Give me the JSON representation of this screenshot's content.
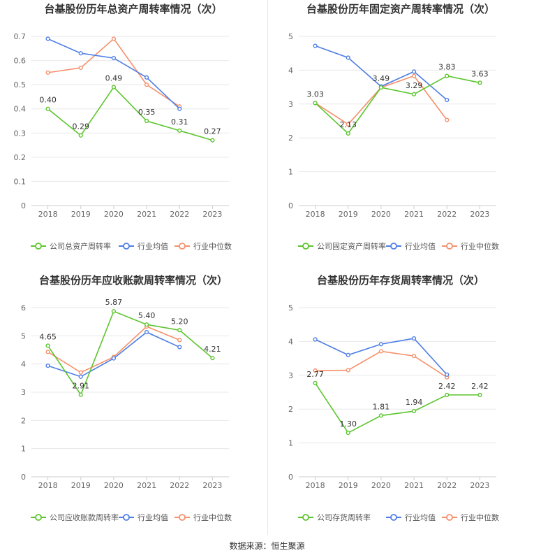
{
  "source_text": "数据来源：恒生聚源",
  "colors": {
    "company": "#5cc52e",
    "industry_avg": "#4e7ee6",
    "industry_median": "#f5906a"
  },
  "chart_data": [
    {
      "type": "line",
      "title": "台基股份历年总资产周转率情况（次）",
      "categories": [
        "2018",
        "2019",
        "2020",
        "2021",
        "2022",
        "2023"
      ],
      "ylim": [
        0,
        0.7
      ],
      "yticks": [
        "0",
        "0.1",
        "0.2",
        "0.3",
        "0.4",
        "0.5",
        "0.6",
        "0.7"
      ],
      "grid": true,
      "legend_position": "bottom",
      "series": [
        {
          "name": "公司总资产周转率",
          "values": [
            0.4,
            0.29,
            0.49,
            0.35,
            0.31,
            0.27
          ],
          "labels": [
            "0.40",
            "0.29",
            "0.49",
            "0.35",
            "0.31",
            "0.27"
          ]
        },
        {
          "name": "行业均值",
          "values": [
            0.69,
            0.63,
            0.61,
            0.53,
            0.4,
            null
          ]
        },
        {
          "name": "行业中位数",
          "values": [
            0.55,
            0.57,
            0.69,
            0.5,
            0.41,
            null
          ]
        }
      ]
    },
    {
      "type": "line",
      "title": "台基股份历年固定资产周转率情况（次）",
      "categories": [
        "2018",
        "2019",
        "2020",
        "2021",
        "2022",
        "2023"
      ],
      "ylim": [
        0,
        5
      ],
      "yticks": [
        "0",
        "1",
        "2",
        "3",
        "4",
        "5"
      ],
      "grid": true,
      "legend_position": "bottom",
      "series": [
        {
          "name": "公司固定资产周转率",
          "values": [
            3.03,
            2.13,
            3.49,
            3.29,
            3.83,
            3.63
          ],
          "labels": [
            "3.03",
            "2.13",
            "3.49",
            "3.29",
            "3.83",
            "3.63"
          ]
        },
        {
          "name": "行业均值",
          "values": [
            4.72,
            4.37,
            3.52,
            3.96,
            3.12,
            null
          ]
        },
        {
          "name": "行业中位数",
          "values": [
            3.03,
            2.4,
            3.49,
            3.83,
            2.53,
            null
          ]
        }
      ]
    },
    {
      "type": "line",
      "title": "台基股份历年应收账款周转率情况（次）",
      "categories": [
        "2018",
        "2019",
        "2020",
        "2021",
        "2022",
        "2023"
      ],
      "ylim": [
        0,
        6
      ],
      "yticks": [
        "0",
        "1",
        "2",
        "3",
        "4",
        "5",
        "6"
      ],
      "grid": true,
      "legend_position": "bottom",
      "series": [
        {
          "name": "公司应收账款周转率",
          "values": [
            4.65,
            2.91,
            5.87,
            5.4,
            5.2,
            4.21
          ],
          "labels": [
            "4.65",
            "2.91",
            "5.87",
            "5.40",
            "5.20",
            "4.21"
          ]
        },
        {
          "name": "行业均值",
          "values": [
            3.94,
            3.55,
            4.2,
            5.13,
            4.6,
            null
          ]
        },
        {
          "name": "行业中位数",
          "values": [
            4.43,
            3.7,
            4.25,
            5.33,
            4.85,
            null
          ]
        }
      ]
    },
    {
      "type": "line",
      "title": "台基股份历年存货周转率情况（次）",
      "categories": [
        "2018",
        "2019",
        "2020",
        "2021",
        "2022",
        "2023"
      ],
      "ylim": [
        0,
        5
      ],
      "yticks": [
        "0",
        "1",
        "2",
        "3",
        "4",
        "5"
      ],
      "grid": true,
      "legend_position": "bottom",
      "series": [
        {
          "name": "公司存货周转率",
          "values": [
            2.77,
            1.3,
            1.81,
            1.94,
            2.42,
            2.42
          ],
          "labels": [
            "2.77",
            "1.30",
            "1.81",
            "1.94",
            "2.42",
            "2.42"
          ]
        },
        {
          "name": "行业均值",
          "values": [
            4.06,
            3.6,
            3.92,
            4.09,
            3.02,
            null
          ]
        },
        {
          "name": "行业中位数",
          "values": [
            3.14,
            3.15,
            3.71,
            3.57,
            2.94,
            null
          ]
        }
      ]
    }
  ]
}
